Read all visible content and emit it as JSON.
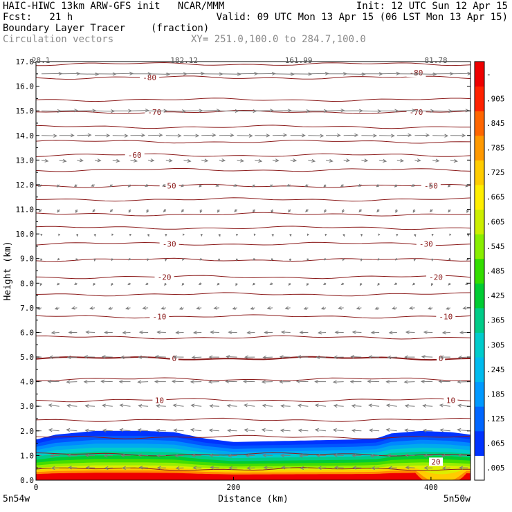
{
  "header": {
    "line1_left": "HAIC-HIWC 13km ARW-GFS init   NCAR/MMM",
    "line1_right": "Init: 12 UTC Sun 12 Apr 15",
    "line2_left": "Fcst:   21 h",
    "line2_right": "Valid: 09 UTC Mon 13 Apr 15 (06 LST Mon 13 Apr 15)",
    "line3_left": "Boundary Layer Tracer",
    "line3_unit": "(fraction)",
    "line4_left": "Circulation vectors",
    "line4_xy": "XY= 251.0,100.0 to 284.7,100.0"
  },
  "chart_data": {
    "type": "heatmap",
    "xlabel": "Distance (km)",
    "ylabel": "Height (km)",
    "xlim": [
      0,
      440
    ],
    "ylim": [
      0,
      17
    ],
    "x_ticks": [
      "0",
      "200",
      "400"
    ],
    "x_tick_values": [
      0,
      200,
      400
    ],
    "y_ticks": [
      "0.0",
      "1.0",
      "2.0",
      "3.0",
      "4.0",
      "5.0",
      "6.0",
      "7.0",
      "8.0",
      "9.0",
      "10.0",
      "11.0",
      "12.0",
      "13.0",
      "14.0",
      "15.0",
      "16.0",
      "17.0"
    ],
    "y_tick_values": [
      0,
      1,
      2,
      3,
      4,
      5,
      6,
      7,
      8,
      9,
      10,
      11,
      12,
      13,
      14,
      15,
      16,
      17
    ],
    "x_end_labels": {
      "left": "5n54w",
      "right": "5n50w"
    },
    "top_labels": [
      {
        "text": "28.1",
        "x": 5
      },
      {
        "text": "182.12",
        "x": 150
      },
      {
        "text": "161.99",
        "x": 266
      },
      {
        "text": "81.78",
        "x": 405
      }
    ],
    "colorbar": {
      "labels": [
        ".005",
        ".065",
        ".125",
        ".185",
        ".245",
        ".305",
        ".365",
        ".425",
        ".485",
        ".545",
        ".605",
        ".665",
        ".725",
        ".785",
        ".845",
        ".905",
        "-"
      ],
      "colors": [
        "#ffffff",
        "#0033ff",
        "#0066ff",
        "#0099ff",
        "#00bbee",
        "#00cccc",
        "#00cc88",
        "#00cc33",
        "#33dd00",
        "#88ee00",
        "#ccee00",
        "#ffee00",
        "#ffcc00",
        "#ff9900",
        "#ff6600",
        "#ff2200",
        "#ee0000"
      ]
    },
    "field": {
      "name": "Boundary Layer Tracer",
      "top_height_km": [
        [
          0,
          1.65
        ],
        [
          20,
          1.85
        ],
        [
          60,
          2.0
        ],
        [
          110,
          2.0
        ],
        [
          140,
          1.95
        ],
        [
          170,
          1.7
        ],
        [
          200,
          1.55
        ],
        [
          260,
          1.6
        ],
        [
          320,
          1.65
        ],
        [
          345,
          1.7
        ],
        [
          360,
          1.9
        ],
        [
          390,
          2.0
        ],
        [
          420,
          1.95
        ],
        [
          440,
          1.85
        ]
      ],
      "dip": {
        "x_center": 410,
        "x_halfwidth": 25,
        "depth_km": 0.75
      }
    },
    "temperature_contours": {
      "color": "#8b1a1a",
      "levels_km": [
        0.45,
        1.05,
        1.75,
        2.45,
        3.25,
        4.1,
        4.95,
        5.8,
        6.65,
        7.55,
        8.25,
        8.95,
        9.6,
        10.25,
        10.8,
        11.4,
        11.95,
        12.6,
        13.2,
        13.75,
        14.35,
        14.95,
        15.45,
        16.35,
        16.9
      ],
      "labels": [
        {
          "text": "20",
          "km": 0.75,
          "x": 405
        },
        {
          "text": "10",
          "km": 3.25,
          "x": 125
        },
        {
          "text": "10",
          "km": 3.25,
          "x": 420
        },
        {
          "text": "0",
          "km": 4.95,
          "x": 140
        },
        {
          "text": "0",
          "km": 4.95,
          "x": 410
        },
        {
          "text": "-10",
          "km": 6.65,
          "x": 125
        },
        {
          "text": "-10",
          "km": 6.65,
          "x": 415
        },
        {
          "text": "-20",
          "km": 8.25,
          "x": 130
        },
        {
          "text": "-20",
          "km": 8.25,
          "x": 405
        },
        {
          "text": "-30",
          "km": 9.6,
          "x": 135
        },
        {
          "text": "-30",
          "km": 9.6,
          "x": 395
        },
        {
          "text": "-50",
          "km": 11.95,
          "x": 135
        },
        {
          "text": "-50",
          "km": 11.95,
          "x": 400
        },
        {
          "text": "-60",
          "km": 13.2,
          "x": 100
        },
        {
          "text": "-70",
          "km": 14.95,
          "x": 120
        },
        {
          "text": "-70",
          "km": 14.95,
          "x": 385
        },
        {
          "text": "-80",
          "km": 16.35,
          "x": 115
        },
        {
          "text": "-80",
          "km": 16.55,
          "x": 385
        }
      ]
    },
    "vectors": {
      "color": "#7a7a7a",
      "x_values_km": [
        0,
        18,
        36,
        54,
        72,
        90,
        108,
        126,
        144,
        162,
        180,
        198,
        216,
        234,
        252,
        270,
        288,
        306,
        324,
        342,
        360,
        378,
        396,
        414,
        432
      ],
      "profile": [
        {
          "km": 16.5,
          "u": 1.0,
          "w": 0.0
        },
        {
          "km": 15.0,
          "u": 0.9,
          "w": 0.0
        },
        {
          "km": 14.0,
          "u": 0.7,
          "w": 0.0
        },
        {
          "km": 13.0,
          "u": 0.3,
          "w": -0.05
        },
        {
          "km": 12.0,
          "u": -0.15,
          "w": -0.1
        },
        {
          "km": 11.0,
          "u": -0.1,
          "w": -0.15
        },
        {
          "km": 10.0,
          "u": 0.0,
          "w": -0.1
        },
        {
          "km": 9.0,
          "u": -0.05,
          "w": -0.1
        },
        {
          "km": 8.0,
          "u": -0.1,
          "w": -0.1
        },
        {
          "km": 7.0,
          "u": -0.25,
          "w": -0.05
        },
        {
          "km": 6.0,
          "u": -0.45,
          "w": 0.0
        },
        {
          "km": 5.0,
          "u": -0.55,
          "w": 0.0
        },
        {
          "km": 4.0,
          "u": -0.6,
          "w": 0.0
        },
        {
          "km": 3.0,
          "u": -0.55,
          "w": 0.05
        },
        {
          "km": 2.0,
          "u": -0.55,
          "w": 0.05
        },
        {
          "km": 1.0,
          "u": -0.5,
          "w": 0.0
        },
        {
          "km": 0.5,
          "u": -0.45,
          "w": 0.0
        }
      ]
    }
  }
}
